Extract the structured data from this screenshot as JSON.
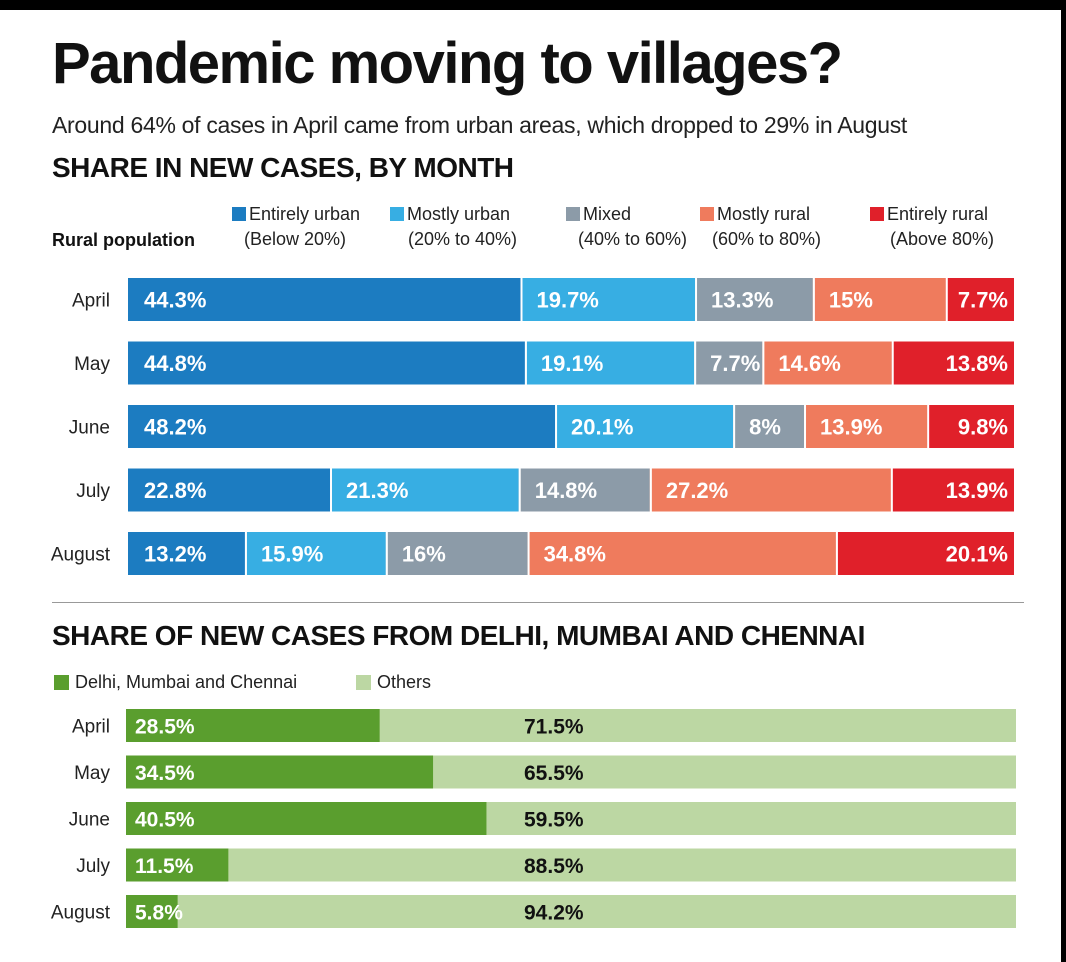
{
  "header": {
    "title": "Pandemic moving to villages?",
    "subtitle": "Around 64% of cases in April came from urban areas, which dropped to 29% in August"
  },
  "chart_data": [
    {
      "type": "bar",
      "stacked": true,
      "orientation": "horizontal",
      "title": "SHARE IN NEW CASES, BY MONTH",
      "legend_title": "Rural population",
      "categories": [
        "April",
        "May",
        "June",
        "July",
        "August"
      ],
      "series": [
        {
          "name": "Entirely urban",
          "range": "(Below 20%)",
          "color": "#1c7cc1",
          "values": [
            44.3,
            44.8,
            48.2,
            22.8,
            13.2
          ],
          "labels": [
            "44.3%",
            "44.8%",
            "48.2%",
            "22.8%",
            "13.2%"
          ]
        },
        {
          "name": "Mostly urban",
          "range": "(20% to 40%)",
          "color": "#37aee3",
          "values": [
            19.7,
            19.1,
            20.1,
            21.3,
            15.9
          ],
          "labels": [
            "19.7%",
            "19.1%",
            "20.1%",
            "21.3%",
            "15.9%"
          ]
        },
        {
          "name": "Mixed",
          "range": "(40% to 60%)",
          "color": "#8c9ba8",
          "values": [
            13.3,
            7.7,
            8,
            14.8,
            16
          ],
          "labels": [
            "13.3%",
            "7.7%",
            "8%",
            "14.8%",
            "16%"
          ]
        },
        {
          "name": "Mostly rural",
          "range": "(60% to 80%)",
          "color": "#ef7b5d",
          "values": [
            15,
            14.6,
            13.9,
            27.2,
            34.8
          ],
          "labels": [
            "15%",
            "14.6%",
            "13.9%",
            "27.2%",
            "34.8%"
          ]
        },
        {
          "name": "Entirely rural",
          "range": "(Above 80%)",
          "color": "#e0202a",
          "values": [
            7.7,
            13.8,
            9.8,
            13.9,
            20.1
          ],
          "labels": [
            "7.7%",
            "13.8%",
            "9.8%",
            "13.9%",
            "20.1%"
          ]
        }
      ]
    },
    {
      "type": "bar",
      "stacked": true,
      "orientation": "horizontal",
      "title": "SHARE OF NEW CASES FROM DELHI, MUMBAI AND CHENNAI",
      "categories": [
        "April",
        "May",
        "June",
        "July",
        "August"
      ],
      "series": [
        {
          "name": "Delhi, Mumbai and Chennai",
          "color": "#5a9e2e",
          "values": [
            28.5,
            34.5,
            40.5,
            11.5,
            5.8
          ],
          "labels": [
            "28.5%",
            "34.5%",
            "40.5%",
            "11.5%",
            "5.8%"
          ]
        },
        {
          "name": "Others",
          "color": "#bcd7a3",
          "values": [
            71.5,
            65.5,
            59.5,
            88.5,
            94.2
          ],
          "labels": [
            "71.5%",
            "65.5%",
            "59.5%",
            "88.5%",
            "94.2%"
          ]
        }
      ]
    }
  ]
}
